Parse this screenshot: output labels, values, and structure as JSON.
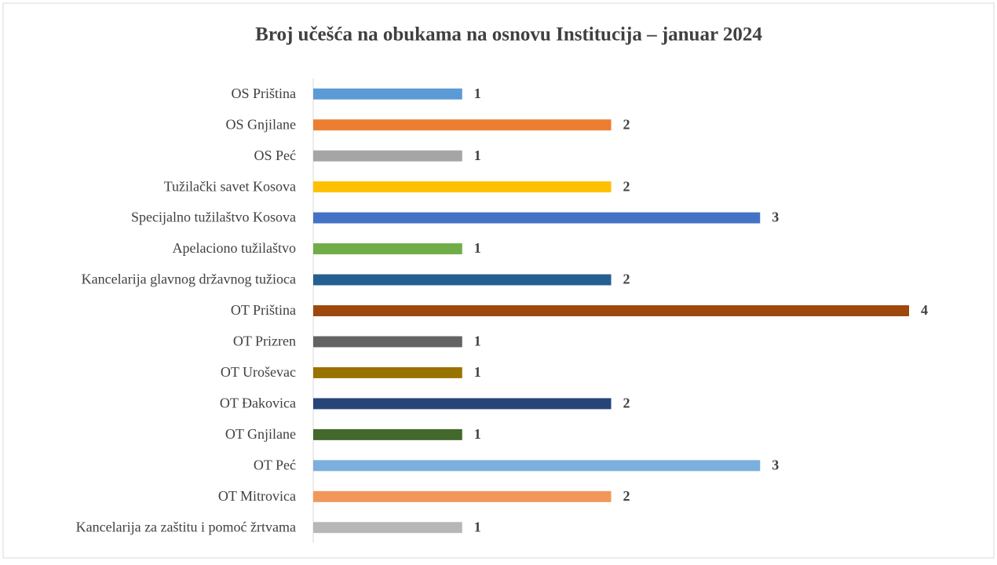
{
  "chart_data": {
    "type": "bar",
    "orientation": "horizontal",
    "title": "Broj učešća na obukama na osnovu Institucija – januar 2024",
    "categories": [
      "OS Priština",
      "OS Gnjilane",
      "OS Peć",
      "Tužilački savet Kosova",
      "Specijalno tužilaštvo Kosova",
      "Apelaciono tužilaštvo",
      "Kancelarija glavnog državnog tužioca",
      "OT Priština",
      "OT Prizren",
      "OT Uroševac",
      "OT Đakovica",
      "OT Gnjilane",
      "OT Peć",
      "OT Mitrovica",
      "Kancelarija za zaštitu i pomoć žrtvama"
    ],
    "values": [
      1,
      2,
      1,
      2,
      3,
      1,
      2,
      4,
      1,
      1,
      2,
      1,
      3,
      2,
      1
    ],
    "colors": [
      "#5b9bd5",
      "#ed7d31",
      "#a5a5a5",
      "#ffc000",
      "#4472c4",
      "#70ad47",
      "#255e91",
      "#9e480e",
      "#636363",
      "#997300",
      "#264478",
      "#43682b",
      "#7cafdd",
      "#f1975a",
      "#b7b7b7"
    ]
  }
}
